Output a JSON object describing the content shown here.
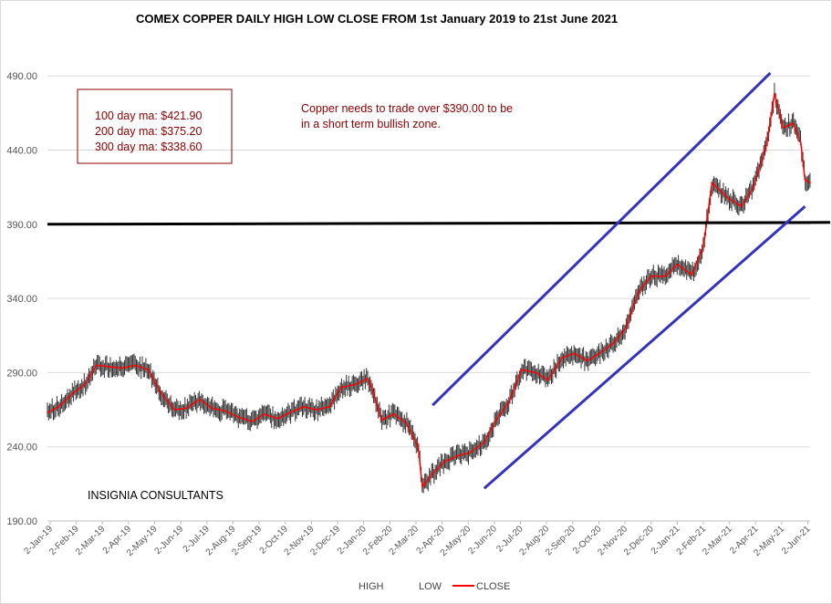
{
  "chart_data": {
    "type": "line",
    "title": "COMEX COPPER DAILY HIGH LOW CLOSE FROM 1st January 2019 to 21st June 2021",
    "xlabel": "",
    "ylabel": "",
    "ylim": [
      190,
      500
    ],
    "y_ticks": [
      "190.00",
      "240.00",
      "290.00",
      "340.00",
      "390.00",
      "440.00",
      "490.00"
    ],
    "grid": "horizontal",
    "x_ticks": [
      "2-Jan-19",
      "2-Feb-19",
      "2-Mar-19",
      "2-Apr-19",
      "2-May-19",
      "2-Jun-19",
      "2-Jul-19",
      "2-Aug-19",
      "2-Sep-19",
      "2-Oct-19",
      "2-Nov-19",
      "2-Dec-19",
      "2-Jan-20",
      "2-Feb-20",
      "2-Mar-20",
      "2-Apr-20",
      "2-May-20",
      "2-Jun-20",
      "2-Jul-20",
      "2-Aug-20",
      "2-Sep-20",
      "2-Oct-20",
      "2-Nov-20",
      "2-Dec-20",
      "2-Jan-21",
      "2-Feb-21",
      "2-Mar-21",
      "2-Apr-21",
      "2-May-21",
      "2-Jun-21"
    ],
    "x_range": [
      "2019-01-02",
      "2021-06-21"
    ],
    "legend": {
      "position": "bottom",
      "entries": [
        "HIGH",
        "LOW",
        "CLOSE"
      ]
    },
    "series": [
      {
        "name": "CLOSE",
        "color": "#ff0000",
        "points": [
          [
            "2019-01-02",
            263
          ],
          [
            "2019-01-15",
            267
          ],
          [
            "2019-02-01",
            276
          ],
          [
            "2019-02-15",
            282
          ],
          [
            "2019-03-01",
            295
          ],
          [
            "2019-03-15",
            294
          ],
          [
            "2019-04-01",
            293
          ],
          [
            "2019-04-15",
            295
          ],
          [
            "2019-05-01",
            292
          ],
          [
            "2019-05-15",
            277
          ],
          [
            "2019-06-01",
            265
          ],
          [
            "2019-06-15",
            266
          ],
          [
            "2019-07-01",
            272
          ],
          [
            "2019-07-15",
            266
          ],
          [
            "2019-08-01",
            264
          ],
          [
            "2019-08-15",
            260
          ],
          [
            "2019-09-01",
            257
          ],
          [
            "2019-09-15",
            262
          ],
          [
            "2019-10-01",
            259
          ],
          [
            "2019-10-15",
            263
          ],
          [
            "2019-11-01",
            267
          ],
          [
            "2019-11-15",
            265
          ],
          [
            "2019-12-01",
            267
          ],
          [
            "2019-12-15",
            280
          ],
          [
            "2020-01-01",
            282
          ],
          [
            "2020-01-15",
            286
          ],
          [
            "2020-01-20",
            280
          ],
          [
            "2020-02-01",
            258
          ],
          [
            "2020-02-15",
            262
          ],
          [
            "2020-03-01",
            256
          ],
          [
            "2020-03-15",
            240
          ],
          [
            "2020-03-20",
            213
          ],
          [
            "2020-04-01",
            222
          ],
          [
            "2020-04-15",
            230
          ],
          [
            "2020-05-01",
            234
          ],
          [
            "2020-05-15",
            236
          ],
          [
            "2020-06-01",
            243
          ],
          [
            "2020-06-15",
            258
          ],
          [
            "2020-07-01",
            271
          ],
          [
            "2020-07-15",
            292
          ],
          [
            "2020-08-01",
            290
          ],
          [
            "2020-08-15",
            285
          ],
          [
            "2020-09-01",
            300
          ],
          [
            "2020-09-15",
            303
          ],
          [
            "2020-10-01",
            298
          ],
          [
            "2020-10-15",
            303
          ],
          [
            "2020-11-01",
            310
          ],
          [
            "2020-11-15",
            320
          ],
          [
            "2020-12-01",
            345
          ],
          [
            "2020-12-15",
            355
          ],
          [
            "2021-01-01",
            355
          ],
          [
            "2021-01-15",
            363
          ],
          [
            "2021-02-01",
            356
          ],
          [
            "2021-02-15",
            375
          ],
          [
            "2021-02-25",
            418
          ],
          [
            "2021-03-15",
            408
          ],
          [
            "2021-04-01",
            402
          ],
          [
            "2021-04-15",
            415
          ],
          [
            "2021-05-01",
            445
          ],
          [
            "2021-05-10",
            478
          ],
          [
            "2021-05-20",
            455
          ],
          [
            "2021-06-01",
            458
          ],
          [
            "2021-06-10",
            445
          ],
          [
            "2021-06-15",
            420
          ],
          [
            "2021-06-21",
            418
          ]
        ]
      }
    ],
    "annotations": {
      "moving_averages": [
        "100 day ma: $421.90",
        "200 day ma: $375.20",
        "300 day ma: $338.60"
      ],
      "note_lines": [
        "Copper needs to trade over $390.00 to be",
        "in a short term bullish zone."
      ],
      "credit": "INSIGNIA CONSULTANTS"
    },
    "reference_lines": [
      {
        "type": "horizontal",
        "y": 390,
        "color": "#000000",
        "from": "2019-01-02",
        "to": "2021-06-21"
      },
      {
        "type": "trend",
        "color": "#3333bb",
        "from": [
          "2020-04-01",
          268
        ],
        "to": [
          "2021-05-05",
          492
        ]
      },
      {
        "type": "trend",
        "color": "#3333bb",
        "from": [
          "2020-06-01",
          212
        ],
        "to": [
          "2021-06-15",
          402
        ]
      }
    ]
  }
}
